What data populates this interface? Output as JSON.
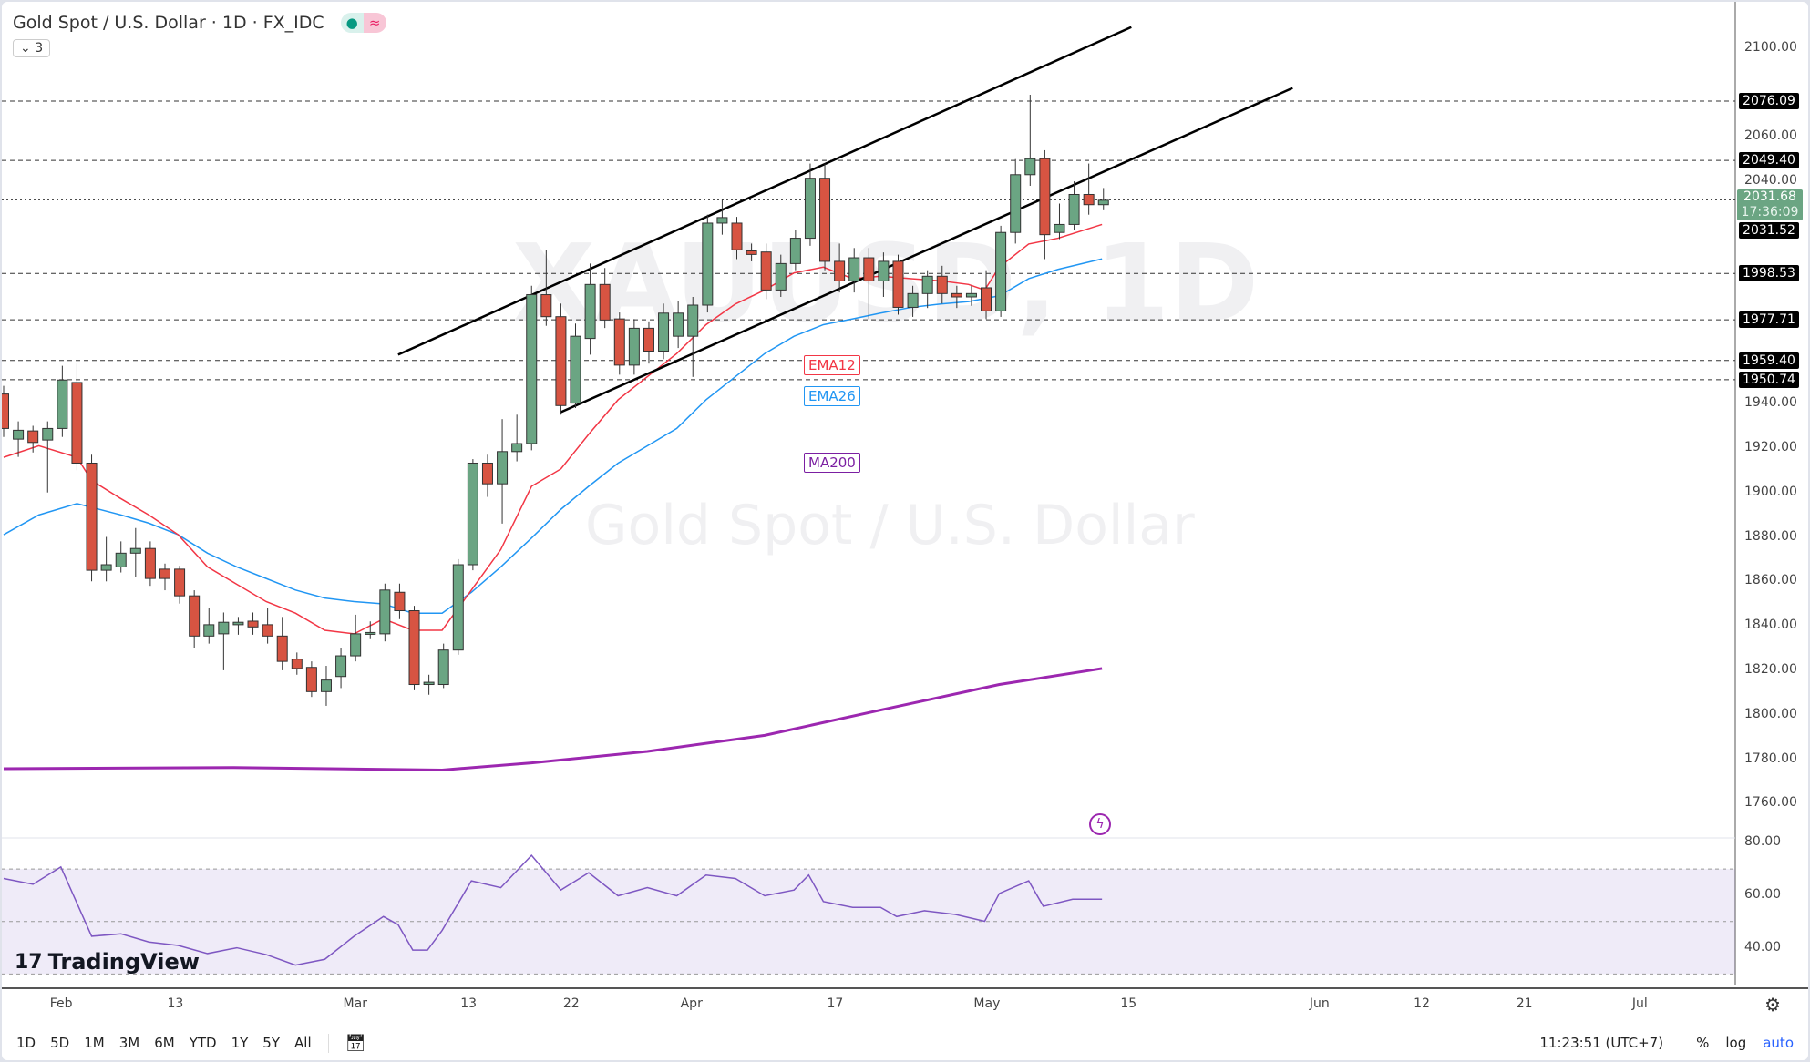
{
  "header": {
    "title": "Gold Spot / U.S. Dollar · 1D · FX_IDC",
    "indicators_collapsed": "3"
  },
  "watermark": {
    "symbol": "XAUUSD, 1D",
    "name": "Gold Spot / U.S. Dollar"
  },
  "brand": "TradingView",
  "colors": {
    "up": "#6ba583",
    "down": "#d75442",
    "ema12": "#f23645",
    "ema26": "#2196f3",
    "ma200": "#9c27b0"
  },
  "indicator_labels": {
    "ema12": "EMA12",
    "ema26": "EMA26",
    "ma200": "MA200"
  },
  "price_axis": {
    "ticks": [
      "2100.00",
      "2060.00",
      "2040.00",
      "1940.00",
      "1920.00",
      "1900.00",
      "1880.00",
      "1860.00",
      "1840.00",
      "1820.00",
      "1800.00",
      "1780.00",
      "1760.00"
    ],
    "levels": [
      "2076.09",
      "2049.40",
      "1998.53",
      "1977.71",
      "1959.40",
      "1950.74"
    ],
    "extra_label": "2031.52",
    "current_price": "2031.68",
    "countdown": "17:36:09"
  },
  "rsi_axis": {
    "ticks": [
      "80.00",
      "60.00",
      "40.00"
    ]
  },
  "time_axis": [
    {
      "label": "Feb",
      "bar": 3.9
    },
    {
      "label": "13",
      "bar": 11.9
    },
    {
      "label": "Mar",
      "bar": 23.9
    },
    {
      "label": "13",
      "bar": 31.9
    },
    {
      "label": "22",
      "bar": 38.9
    },
    {
      "label": "Apr",
      "bar": 46.9
    },
    {
      "label": "17",
      "bar": 56.9
    },
    {
      "label": "May",
      "bar": 66.9
    },
    {
      "label": "15",
      "bar": 76.9
    },
    {
      "label": "Jun",
      "bar": 89.8
    },
    {
      "label": "12",
      "bar": 96.9
    },
    {
      "label": "21",
      "bar": 103.9
    },
    {
      "label": "Jul",
      "bar": 111.8
    }
  ],
  "toolbar": {
    "ranges": [
      "1D",
      "5D",
      "1M",
      "3M",
      "6M",
      "YTD",
      "1Y",
      "5Y",
      "All"
    ],
    "clock": "11:23:51 (UTC+7)",
    "percent": "%",
    "log": "log",
    "auto": "auto"
  },
  "chart_data": {
    "type": "candlestick",
    "ylim": [
      1760,
      2110
    ],
    "candles": [
      [
        1944.3,
        1948,
        1925,
        1928.8
      ],
      [
        1924,
        1932,
        1916,
        1928
      ],
      [
        1927.7,
        1930,
        1918,
        1922.5
      ],
      [
        1923.6,
        1932,
        1900,
        1928.8
      ],
      [
        1928.8,
        1957,
        1925,
        1950.6
      ],
      [
        1949.5,
        1958,
        1910,
        1913.2
      ],
      [
        1913.2,
        1917,
        1860,
        1865
      ],
      [
        1865,
        1880,
        1860,
        1867.5
      ],
      [
        1866.5,
        1878,
        1864,
        1872.7
      ],
      [
        1872.7,
        1884,
        1862,
        1874.8
      ],
      [
        1874.8,
        1878,
        1858,
        1861.3
      ],
      [
        1865.5,
        1868,
        1856,
        1861.3
      ],
      [
        1865.5,
        1867,
        1850,
        1853.5
      ],
      [
        1853.5,
        1856,
        1830,
        1835.4
      ],
      [
        1835.4,
        1848,
        1832,
        1840.5
      ],
      [
        1836.4,
        1846,
        1820,
        1841.6
      ],
      [
        1840.5,
        1844,
        1836,
        1841.6
      ],
      [
        1842.1,
        1846,
        1836,
        1839.5
      ],
      [
        1840.5,
        1848,
        1832,
        1835.4
      ],
      [
        1835.4,
        1844,
        1820,
        1824
      ],
      [
        1825,
        1828,
        1818,
        1820.8
      ],
      [
        1821.3,
        1824,
        1808,
        1810.4
      ],
      [
        1810.4,
        1822,
        1804,
        1815.6
      ],
      [
        1817.2,
        1830,
        1812,
        1826.5
      ],
      [
        1826.5,
        1845,
        1824,
        1836.4
      ],
      [
        1836.4,
        1842,
        1834,
        1837
      ],
      [
        1836.4,
        1859,
        1833,
        1856.1
      ],
      [
        1855.1,
        1859,
        1843,
        1846.8
      ],
      [
        1846.8,
        1849,
        1811,
        1813.6
      ],
      [
        1813.6,
        1818,
        1809,
        1814.6
      ],
      [
        1813.6,
        1832,
        1812,
        1829.1
      ],
      [
        1829.1,
        1870,
        1827,
        1867.5
      ],
      [
        1867.5,
        1915,
        1865,
        1913.2
      ],
      [
        1913.2,
        1917,
        1898,
        1903.9
      ],
      [
        1903.9,
        1933,
        1886,
        1918.4
      ],
      [
        1918.4,
        1935,
        1914,
        1922
      ],
      [
        1922,
        1993,
        1919,
        1989
      ],
      [
        1989,
        2009,
        1975,
        1979.1
      ],
      [
        1979.1,
        1985,
        1935,
        1939.1
      ],
      [
        1940.2,
        1976,
        1938,
        1970.3
      ],
      [
        1969.3,
        2003,
        1962,
        1993.6
      ],
      [
        1993.6,
        2001,
        1974,
        1977.6
      ],
      [
        1978.1,
        1981,
        1953,
        1957.3
      ],
      [
        1957.3,
        1978,
        1953,
        1973.9
      ],
      [
        1973.9,
        1977,
        1958,
        1963.6
      ],
      [
        1963.6,
        1985,
        1960,
        1980.7
      ],
      [
        1970.3,
        1986,
        1965,
        1980.7
      ],
      [
        1970.3,
        1988,
        1952,
        1984.3
      ],
      [
        1984.3,
        2025,
        1981,
        2021.2
      ],
      [
        2021.2,
        2032,
        2016,
        2023.7
      ],
      [
        2021.2,
        2024,
        2005,
        2009.2
      ],
      [
        2008.7,
        2012,
        2004,
        2007.1
      ],
      [
        2008.2,
        2012,
        1987,
        1991.1
      ],
      [
        1991.1,
        2007,
        1988,
        2003
      ],
      [
        2003,
        2018,
        2000,
        2014.4
      ],
      [
        2014.4,
        2048,
        2011,
        2041.4
      ],
      [
        2041.4,
        2048,
        2000,
        2004
      ],
      [
        2004,
        2012,
        1990,
        1995.2
      ],
      [
        1995.2,
        2010,
        1990,
        2005.6
      ],
      [
        2005.6,
        2010,
        1978,
        1995.2
      ],
      [
        1995.2,
        2008,
        1988,
        2004
      ],
      [
        2004,
        2007,
        1980,
        1983.3
      ],
      [
        1983.3,
        1993,
        1979,
        1989.5
      ],
      [
        1989.5,
        2000,
        1983,
        1997.3
      ],
      [
        1997.3,
        2002,
        1985,
        1989.5
      ],
      [
        1989.5,
        1993,
        1983,
        1988
      ],
      [
        1988,
        1993,
        1984,
        1989.5
      ],
      [
        1992.1,
        2000,
        1978,
        1981.7
      ],
      [
        1981.7,
        2020,
        1979,
        2017
      ],
      [
        2017,
        2050,
        2012,
        2043
      ],
      [
        2043,
        2079,
        2038,
        2050.2
      ],
      [
        2050.2,
        2054,
        2005,
        2016
      ],
      [
        2017,
        2030,
        2014,
        2020.6
      ],
      [
        2020.6,
        2040,
        2018,
        2034.1
      ],
      [
        2034.1,
        2048,
        2025,
        2029.5
      ],
      [
        2029.5,
        2037,
        2027,
        2031.5
      ]
    ],
    "ema12": [
      [
        0,
        1915.8
      ],
      [
        2.4,
        1921
      ],
      [
        5,
        1915.8
      ],
      [
        6,
        1905.4
      ],
      [
        7.9,
        1897.6
      ],
      [
        9.9,
        1889.9
      ],
      [
        11.9,
        1881
      ],
      [
        13.9,
        1866.5
      ],
      [
        15.9,
        1858.7
      ],
      [
        17.9,
        1850.9
      ],
      [
        19.9,
        1845.7
      ],
      [
        21.9,
        1838
      ],
      [
        23.9,
        1836.4
      ],
      [
        25.9,
        1843.1
      ],
      [
        27.9,
        1838
      ],
      [
        29.9,
        1838
      ],
      [
        31.9,
        1856.1
      ],
      [
        33.9,
        1874.3
      ],
      [
        36,
        1902.8
      ],
      [
        38,
        1910.6
      ],
      [
        39.9,
        1926.2
      ],
      [
        41.9,
        1941.7
      ],
      [
        43.9,
        1952.1
      ],
      [
        45.9,
        1962.5
      ],
      [
        47.9,
        1975.5
      ],
      [
        49.9,
        1984.8
      ],
      [
        51.9,
        1991.1
      ],
      [
        53.9,
        1998.8
      ],
      [
        55.9,
        2001.4
      ],
      [
        57.9,
        1996.2
      ],
      [
        59.8,
        1997.3
      ],
      [
        61.9,
        1996.2
      ],
      [
        63.9,
        1995.2
      ],
      [
        65.8,
        1993.6
      ],
      [
        66.9,
        1991.1
      ],
      [
        67.9,
        2001.4
      ],
      [
        69.9,
        2011.8
      ],
      [
        71.9,
        2014.4
      ],
      [
        74.9,
        2020.6
      ]
    ],
    "ema26": [
      [
        0,
        1881
      ],
      [
        2.4,
        1889.9
      ],
      [
        5,
        1895
      ],
      [
        8,
        1889.9
      ],
      [
        9.9,
        1886.2
      ],
      [
        11.9,
        1881
      ],
      [
        13.9,
        1872.7
      ],
      [
        15.9,
        1866.5
      ],
      [
        17.9,
        1861.3
      ],
      [
        19.9,
        1856.1
      ],
      [
        21.9,
        1852.5
      ],
      [
        23.9,
        1850.9
      ],
      [
        25.9,
        1849.9
      ],
      [
        27.9,
        1845.7
      ],
      [
        29.9,
        1845.7
      ],
      [
        31.9,
        1855.1
      ],
      [
        33.9,
        1866.5
      ],
      [
        36,
        1879.5
      ],
      [
        38,
        1892.4
      ],
      [
        39.9,
        1902.8
      ],
      [
        41.9,
        1913.2
      ],
      [
        43.9,
        1921
      ],
      [
        45.9,
        1928.8
      ],
      [
        47.9,
        1941.7
      ],
      [
        49.9,
        1952.1
      ],
      [
        51.9,
        1962.5
      ],
      [
        53.9,
        1970.3
      ],
      [
        55.9,
        1975.5
      ],
      [
        57.9,
        1978.1
      ],
      [
        59.8,
        1980.7
      ],
      [
        61.9,
        1983.3
      ],
      [
        63.9,
        1984.8
      ],
      [
        65.8,
        1985.9
      ],
      [
        67.9,
        1988.5
      ],
      [
        69.9,
        1996.2
      ],
      [
        71.9,
        2000.4
      ],
      [
        74.9,
        2005.1
      ]
    ],
    "ma200": [
      [
        0,
        1775.7
      ],
      [
        15.7,
        1776.2
      ],
      [
        29.9,
        1775.1
      ],
      [
        36,
        1778.3
      ],
      [
        43.9,
        1783.5
      ],
      [
        51.9,
        1790.7
      ],
      [
        59.8,
        1802.1
      ],
      [
        67.9,
        1813.6
      ],
      [
        74.9,
        1820.8
      ]
    ],
    "trendlines": [
      [
        [
          26.9,
          1962
        ],
        [
          76.9,
          2109.4
        ]
      ],
      [
        [
          37.95,
          1936
        ],
        [
          87.9,
          2082
        ]
      ]
    ],
    "levels": [
      2076.09,
      2049.4,
      1998.53,
      1977.71,
      1959.4,
      1950.74
    ],
    "current_price": 2031.68,
    "rsi": {
      "ylim": [
        30,
        85
      ],
      "bands": [
        70,
        50,
        30
      ],
      "points": [
        [
          0,
          66.4
        ],
        [
          2,
          64.2
        ],
        [
          3.9,
          70.8
        ],
        [
          6,
          44.4
        ],
        [
          8,
          45.3
        ],
        [
          9.9,
          42.2
        ],
        [
          11.9,
          40.9
        ],
        [
          13.9,
          37.8
        ],
        [
          15.9,
          40
        ],
        [
          17.9,
          37.4
        ],
        [
          19.9,
          33.4
        ],
        [
          21.9,
          35.6
        ],
        [
          23.9,
          44.4
        ],
        [
          25.9,
          51.9
        ],
        [
          26.9,
          48.8
        ],
        [
          27.9,
          39.1
        ],
        [
          28.9,
          39.1
        ],
        [
          29.9,
          46.6
        ],
        [
          31.9,
          65.5
        ],
        [
          33.9,
          62.9
        ],
        [
          36,
          75.2
        ],
        [
          38,
          62
        ],
        [
          39.9,
          68.6
        ],
        [
          41.9,
          59.8
        ],
        [
          43.9,
          62.9
        ],
        [
          45.9,
          59.8
        ],
        [
          47.9,
          67.7
        ],
        [
          49.9,
          66.4
        ],
        [
          51.9,
          59.8
        ],
        [
          53.9,
          62
        ],
        [
          54.9,
          67.7
        ],
        [
          55.9,
          57.6
        ],
        [
          57.9,
          55.4
        ],
        [
          59.8,
          55.4
        ],
        [
          60.9,
          51.9
        ],
        [
          62.8,
          54.1
        ],
        [
          64.9,
          52.7
        ],
        [
          66.9,
          50.1
        ],
        [
          67.9,
          60.7
        ],
        [
          69.9,
          65.5
        ],
        [
          70.9,
          55.8
        ],
        [
          72.9,
          58.5
        ],
        [
          74.9,
          58.5
        ]
      ]
    }
  }
}
